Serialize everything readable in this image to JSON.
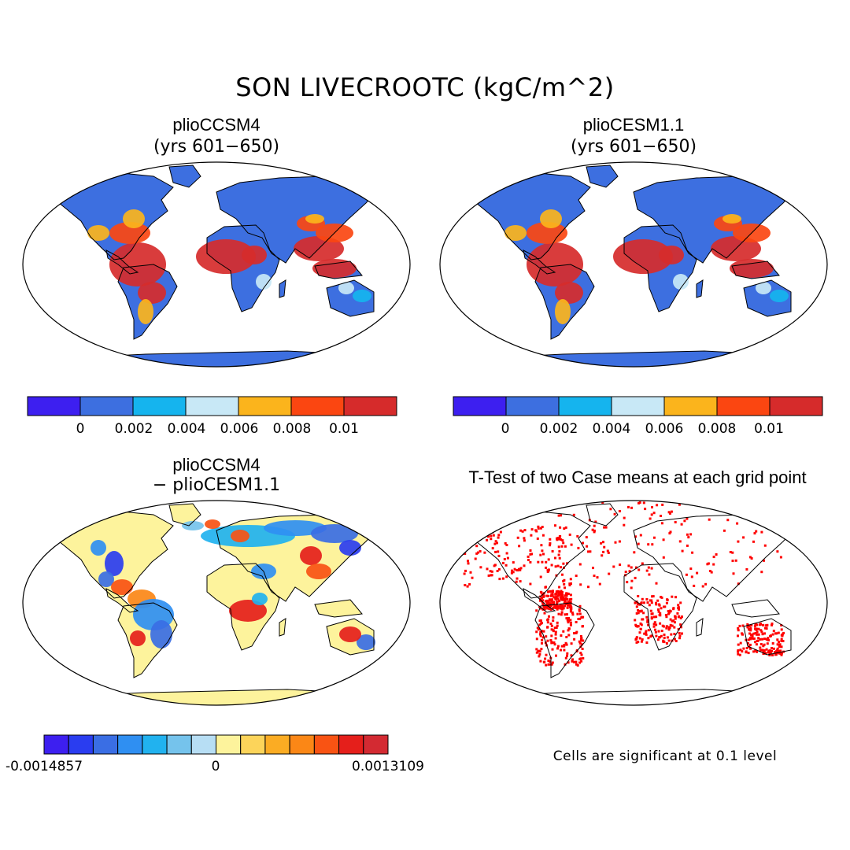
{
  "figure": {
    "title": "SON LIVECROOTC (kgC/m^2)"
  },
  "panels": [
    {
      "id": "top-left",
      "title": "plioCCSM4",
      "subtitle": "(yrs 601−650)"
    },
    {
      "id": "top-right",
      "title": "plioCESM1.1",
      "subtitle": "(yrs 601−650)"
    },
    {
      "id": "bottom-left",
      "title": "plioCCSM4",
      "subtitle": "− plioCESM1.1"
    },
    {
      "id": "bottom-right",
      "title": "T-Test of two Case means at each grid point",
      "note": "Cells are significant at 0.1 level"
    }
  ],
  "colorbars": {
    "field": {
      "colors": [
        "#3d1ff0",
        "#3d6fe0",
        "#15b4ee",
        "#c8e8f6",
        "#fbb41c",
        "#fb4611",
        "#d62b2b"
      ],
      "tick_labels": [
        "0",
        "0.002",
        "0.004",
        "0.006",
        "0.008",
        "0.01"
      ]
    },
    "diff": {
      "colors": [
        "#3d1ff0",
        "#2a3df0",
        "#3a6ee4",
        "#2f8ff2",
        "#21b2ef",
        "#75c3ec",
        "#b7def4",
        "#fdf39c",
        "#fcd45a",
        "#fbac23",
        "#fb8716",
        "#f95313",
        "#e51f1b",
        "#d32a32"
      ],
      "tick_labels": [
        "-0.0014857",
        "0",
        "0.0013109"
      ]
    }
  },
  "colors": {
    "land_base": "#3d6fe0",
    "diff_base": "#fdf39c",
    "significant": "#ff0000",
    "coast": "#000000"
  }
}
